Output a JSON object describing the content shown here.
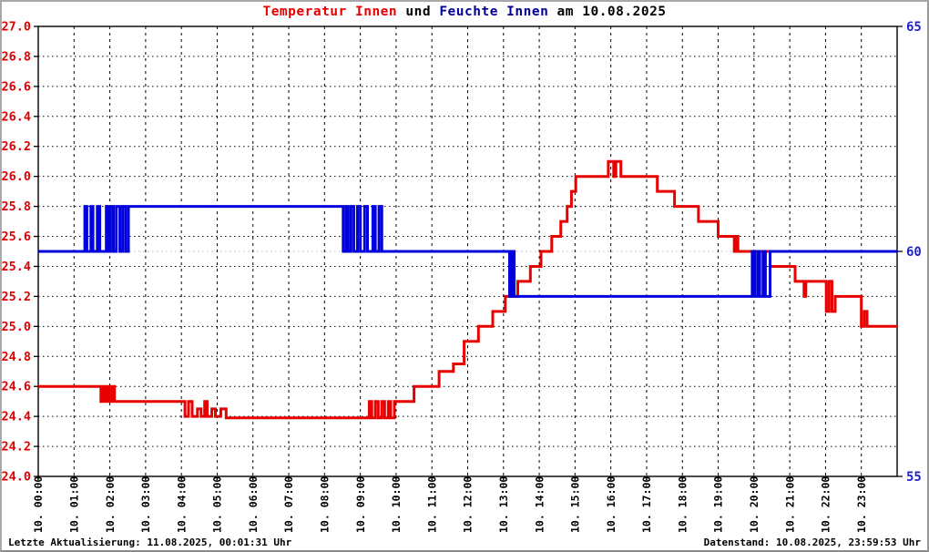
{
  "title": {
    "part1": "Temperatur Innen",
    "part2": " und ",
    "part3": "Feuchte Innen",
    "part4": " am 10.08.2025"
  },
  "footer": {
    "left": "Letzte Aktualisierung: 11.08.2025, 00:01:31 Uhr",
    "right": "Datenstand: 10.08.2025, 23:59:53 Uhr"
  },
  "colors": {
    "temperature_line": "#e80000",
    "humidity_line": "#0000dd",
    "left_axis_labels": "#e00000",
    "right_axis_labels": "#2020cc",
    "grid": "#000000",
    "humidity_gridline": "#c8c8c8",
    "axis": "#000000",
    "title_temperature": "#e80000",
    "title_humidity": "#000099"
  },
  "chart_data": {
    "type": "line",
    "title": "Temperatur Innen und Feuchte Innen am 10.08.2025",
    "grid": "on",
    "x_axis": {
      "range": [
        0,
        24
      ],
      "labels": [
        "10. 00:00",
        "10. 01:00",
        "10. 02:00",
        "10. 03:00",
        "10. 04:00",
        "10. 05:00",
        "10. 06:00",
        "10. 07:00",
        "10. 08:00",
        "10. 09:00",
        "10. 10:00",
        "10. 11:00",
        "10. 12:00",
        "10. 13:00",
        "10. 14:00",
        "10. 15:00",
        "10. 16:00",
        "10. 17:00",
        "10. 18:00",
        "10. 19:00",
        "10. 20:00",
        "10. 21:00",
        "10. 22:00",
        "10. 23:00"
      ]
    },
    "y_left": {
      "range": [
        24.0,
        27.0
      ],
      "ticks": [
        27.0,
        26.8,
        26.6,
        26.4,
        26.2,
        26.0,
        25.8,
        25.6,
        25.4,
        25.2,
        25.0,
        24.8,
        24.6,
        24.4,
        24.2,
        24.0
      ],
      "tick_labels": [
        "27.0",
        "26.8",
        "26.6",
        "26.4",
        "26.2",
        "26.0",
        "25.8",
        "25.6",
        "25.4",
        "25.2",
        "25.0",
        "24.8",
        "24.6",
        "24.4",
        "24.2",
        "24.0"
      ]
    },
    "y_right": {
      "range": [
        55,
        65
      ],
      "ticks": [
        65,
        60,
        55
      ],
      "tick_labels": [
        "65",
        "60",
        "55"
      ]
    },
    "series": [
      {
        "name": "Temperatur Innen",
        "key": "temperature",
        "axis": "left",
        "color": "#e80000",
        "points": [
          [
            0,
            24.6
          ],
          [
            1.75,
            24.5
          ],
          [
            1.8,
            24.6
          ],
          [
            1.87,
            24.5
          ],
          [
            1.93,
            24.6
          ],
          [
            2.0,
            24.5
          ],
          [
            2.07,
            24.6
          ],
          [
            2.13,
            24.5
          ],
          [
            4.1,
            24.4
          ],
          [
            4.2,
            24.5
          ],
          [
            4.3,
            24.4
          ],
          [
            4.45,
            24.45
          ],
          [
            4.55,
            24.4
          ],
          [
            4.65,
            24.5
          ],
          [
            4.72,
            24.4
          ],
          [
            4.85,
            24.45
          ],
          [
            4.95,
            24.4
          ],
          [
            5.1,
            24.45
          ],
          [
            5.25,
            24.39
          ],
          [
            9.25,
            24.5
          ],
          [
            9.32,
            24.39
          ],
          [
            9.42,
            24.5
          ],
          [
            9.5,
            24.39
          ],
          [
            9.6,
            24.5
          ],
          [
            9.68,
            24.39
          ],
          [
            9.78,
            24.5
          ],
          [
            9.85,
            24.39
          ],
          [
            9.95,
            24.5
          ],
          [
            10.5,
            24.6
          ],
          [
            11.2,
            24.7
          ],
          [
            11.6,
            24.75
          ],
          [
            11.9,
            24.9
          ],
          [
            12.3,
            25.0
          ],
          [
            12.7,
            25.1
          ],
          [
            13.05,
            25.2
          ],
          [
            13.4,
            25.3
          ],
          [
            13.75,
            25.4
          ],
          [
            14.05,
            25.5
          ],
          [
            14.35,
            25.6
          ],
          [
            14.6,
            25.7
          ],
          [
            14.78,
            25.8
          ],
          [
            14.9,
            25.9
          ],
          [
            15.02,
            26.0
          ],
          [
            15.93,
            26.1
          ],
          [
            16.08,
            26.0
          ],
          [
            16.14,
            26.1
          ],
          [
            16.28,
            26.0
          ],
          [
            17.3,
            25.9
          ],
          [
            17.78,
            25.8
          ],
          [
            18.45,
            25.7
          ],
          [
            19.0,
            25.6
          ],
          [
            19.45,
            25.5
          ],
          [
            19.5,
            25.6
          ],
          [
            19.55,
            25.5
          ],
          [
            20.45,
            25.4
          ],
          [
            21.15,
            25.3
          ],
          [
            21.4,
            25.2
          ],
          [
            21.45,
            25.3
          ],
          [
            22.02,
            25.1
          ],
          [
            22.1,
            25.3
          ],
          [
            22.18,
            25.1
          ],
          [
            22.27,
            25.2
          ],
          [
            23.0,
            25.0
          ],
          [
            23.08,
            25.1
          ],
          [
            23.16,
            25.0
          ]
        ]
      },
      {
        "name": "Feuchte Innen",
        "key": "humidity",
        "axis": "right",
        "color": "#0000dd",
        "points": [
          [
            0,
            60
          ],
          [
            1.3,
            61
          ],
          [
            1.36,
            60
          ],
          [
            1.47,
            61
          ],
          [
            1.53,
            60
          ],
          [
            1.65,
            61
          ],
          [
            1.72,
            60
          ],
          [
            1.9,
            61
          ],
          [
            1.96,
            60
          ],
          [
            2.02,
            61
          ],
          [
            2.1,
            60
          ],
          [
            2.18,
            61
          ],
          [
            2.28,
            60
          ],
          [
            2.36,
            61
          ],
          [
            2.44,
            60
          ],
          [
            2.52,
            61
          ],
          [
            8.52,
            60
          ],
          [
            8.6,
            61
          ],
          [
            8.66,
            60
          ],
          [
            8.74,
            61
          ],
          [
            8.82,
            60
          ],
          [
            8.92,
            61
          ],
          [
            9.0,
            60
          ],
          [
            9.12,
            61
          ],
          [
            9.2,
            60
          ],
          [
            9.35,
            61
          ],
          [
            9.42,
            60
          ],
          [
            9.52,
            61
          ],
          [
            9.6,
            60
          ],
          [
            13.17,
            59
          ],
          [
            13.23,
            60
          ],
          [
            13.3,
            59
          ],
          [
            19.95,
            60
          ],
          [
            20.02,
            59
          ],
          [
            20.1,
            60
          ],
          [
            20.16,
            59
          ],
          [
            20.25,
            60
          ],
          [
            20.32,
            59
          ],
          [
            20.45,
            60
          ]
        ]
      }
    ]
  }
}
